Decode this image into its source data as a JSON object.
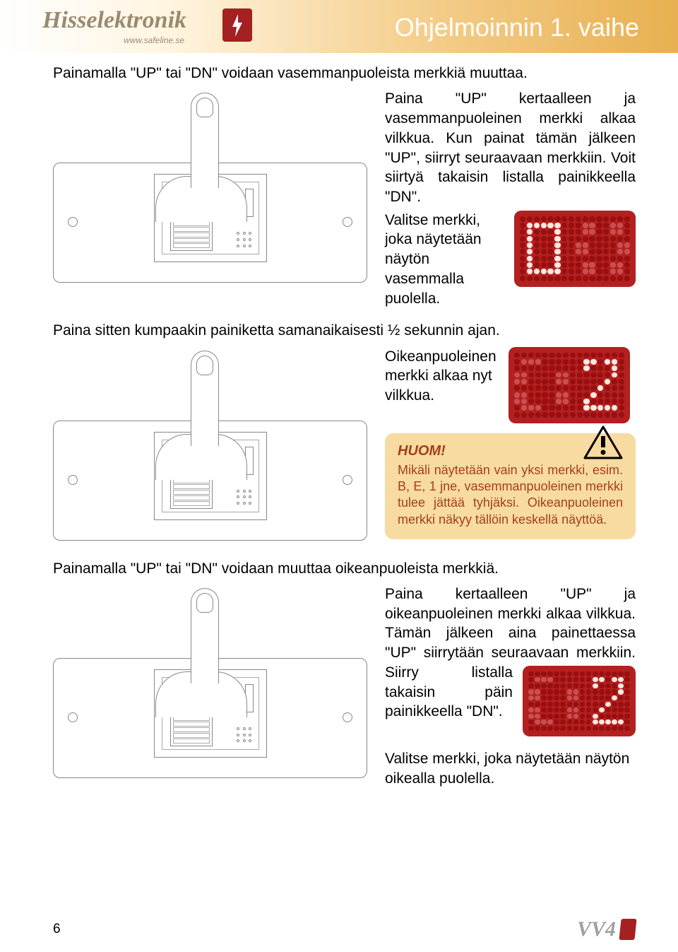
{
  "header": {
    "logo_text": "Hisselektronik",
    "logo_sub": "www.safeline.se",
    "page_title": "Ohjelmoinnin 1. vaihe"
  },
  "colors": {
    "red_display_bg": "#b32020",
    "red_dot_off": "#990f0f",
    "red_dot_on": "#ffe8e0",
    "warning_bg": "#f7dba0",
    "warning_text": "#a54018",
    "logo_color": "#9a8a70",
    "logo_red": "#a52020"
  },
  "intro": "Painamalla \"UP\" tai \"DN\" voidaan vasemmanpuoleista merkkiä muuttaa.",
  "section1": {
    "text1": "Paina \"UP\" kertaalleen ja vasemmanpuoleinen merkki alkaa vilkkua. Kun painat tämän jälkeen \"UP\", siirryt seuraavaan merkkiin. Voit siirtyä takaisin listalla painikkeella \"DN\".",
    "text2": "Valitse merkki, joka näytetään näytön vasemmalla puolella."
  },
  "section2": {
    "intro": "Paina sitten kumpaakin painiketta samanaikaisesti ½ sekunnin ajan.",
    "text1": "Oikeanpuoleinen merkki alkaa nyt vilkkua."
  },
  "warning": {
    "title": "HUOM!",
    "body": "Mikäli näytetään vain yksi merkki, esim. B, E, 1 jne, vasemmanpuoleinen merkki tulee jättää tyhjäksi. Oikeanpuoleinen merkki näkyy tällöin keskellä näyttöä."
  },
  "section3": {
    "intro": "Painamalla \"UP\" tai \"DN\" voidaan muuttaa oikeanpuoleista merkkiä.",
    "text1": "Paina kertaalleen \"UP\" ja oikeanpuoleinen merkki alkaa vilkkua. Tämän jälkeen aina painettaessa \"UP\" siirrytään seuraavaan merkkiin.",
    "text2": "Siirry listalla takaisin päin painikkeella \"DN\".",
    "text3": "Valitse merkki, joka näytetään näytön oikealla puolella."
  },
  "footer": {
    "page_number": "6",
    "logo": "VV4"
  },
  "displays": {
    "d1": {
      "rows": 10,
      "cols": 16,
      "pattern": [
        "................",
        ".#####...oo..oo.",
        ".#...#...oo..oo.",
        ".#...#..........",
        ".#...#..oo....oo",
        ".#...#..oo....oo",
        ".#...#..........",
        ".#...#...oo..oo.",
        ".#####...oo..oo.",
        "................"
      ]
    },
    "d2": {
      "rows": 10,
      "cols": 16,
      "pattern": [
        "................",
        ".ooo......##.##.",
        "..........#...#.",
        "oo....oo......#.",
        "oo....oo.....#..",
        "............#...",
        "oo....oo...#....",
        "oo....oo..#.....",
        ".ooo......#####.",
        "................"
      ]
    },
    "d3": {
      "rows": 10,
      "cols": 16,
      "pattern": [
        "................",
        ".ooo......##.##.",
        "..........#...#.",
        "oo....oo......#.",
        "oo....oo.....#..",
        "............#...",
        "oo....oo...#....",
        "oo....oo..#.....",
        ".ooo......#####.",
        "................"
      ]
    }
  }
}
